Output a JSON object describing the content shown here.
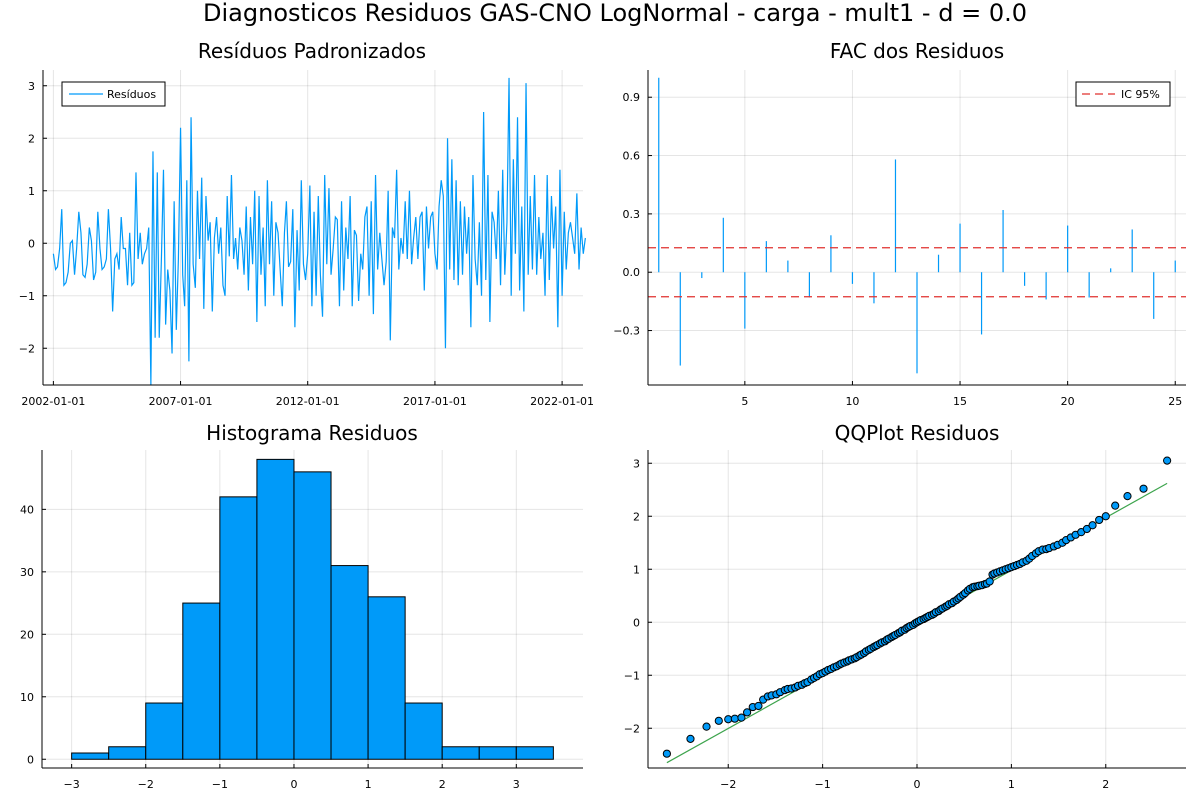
{
  "figure_title": "Diagnosticos Residuos  GAS-CNO LogNormal - carga - mult1 - d = 0.0",
  "colors": {
    "series": "#009af9",
    "ci": "#e26f46",
    "ci_line": "#e0302f",
    "qq_line": "#3da44d",
    "bar_edge": "#000000"
  },
  "chart_data": [
    {
      "type": "line",
      "title": "Resíduos Padronizados",
      "xlabel": "",
      "ylabel": "",
      "x_ticks": [
        "2002-01-01",
        "2007-01-01",
        "2012-01-01",
        "2017-01-01",
        "2022-01-01"
      ],
      "x_start": "2002-01-01",
      "x_end": "2022-06-01",
      "frequency": "monthly",
      "y_ticks": [
        -2,
        -1,
        0,
        1,
        2,
        3
      ],
      "ylim": [
        -2.7,
        3.3
      ],
      "grid": true,
      "legend": "top-left",
      "series": [
        {
          "name": "Resíduos",
          "values": [
            -0.2,
            -0.5,
            -0.45,
            -0.1,
            0.65,
            -0.8,
            -0.75,
            -0.55,
            0.0,
            0.05,
            -0.6,
            -0.1,
            0.6,
            0.2,
            -0.6,
            -0.65,
            -0.4,
            0.3,
            0.05,
            -0.7,
            -0.55,
            0.6,
            -0.1,
            -0.5,
            -0.45,
            -0.3,
            0.65,
            -0.1,
            -1.3,
            -0.3,
            -0.2,
            -0.5,
            0.5,
            -0.1,
            -0.1,
            -0.8,
            0.2,
            -0.8,
            -0.75,
            1.35,
            -0.3,
            0.2,
            -0.4,
            -0.2,
            -0.1,
            0.3,
            -2.7,
            1.75,
            -1.8,
            1.35,
            -1.8,
            -0.3,
            1.4,
            -1.55,
            -0.5,
            -0.9,
            -2.1,
            0.8,
            -1.65,
            -0.3,
            2.2,
            -0.6,
            -1.2,
            1.2,
            -2.25,
            2.4,
            -0.4,
            -0.85,
            1.0,
            -0.3,
            1.25,
            -1.25,
            0.9,
            0.05,
            0.4,
            -1.3,
            0.1,
            0.5,
            -0.2,
            0.3,
            -0.8,
            -1.0,
            0.9,
            -0.25,
            1.3,
            -0.3,
            0.1,
            -0.5,
            0.3,
            0.05,
            -0.6,
            0.7,
            -0.9,
            0.5,
            -0.4,
            1.0,
            -1.5,
            0.9,
            -0.6,
            0.3,
            -1.2,
            1.2,
            -0.4,
            0.8,
            -1.0,
            0.4,
            0.2,
            -0.5,
            -1.2,
            0.2,
            0.8,
            -0.45,
            -0.35,
            0.65,
            -1.6,
            0.25,
            -0.9,
            1.2,
            -0.4,
            -0.7,
            -0.2,
            1.1,
            -1.2,
            0.6,
            -1.0,
            0.9,
            -0.6,
            -1.4,
            1.3,
            -0.4,
            1.05,
            -0.6,
            -0.1,
            0.5,
            0.45,
            -1.2,
            0.8,
            -0.9,
            0.3,
            -0.3,
            0.9,
            -1.2,
            0.25,
            0.15,
            -1.1,
            -0.2,
            -0.5,
            0.5,
            0.7,
            -1.0,
            0.8,
            -1.35,
            1.3,
            -0.5,
            0.2,
            -0.3,
            -0.8,
            -0.35,
            1.0,
            -1.85,
            0.3,
            0.1,
            1.4,
            -0.5,
            0.1,
            -0.2,
            0.8,
            -0.3,
            1.0,
            -0.4,
            0.1,
            0.5,
            -0.3,
            0.5,
            0.6,
            -0.9,
            0.7,
            -0.1,
            0.5,
            0.6,
            -0.2,
            -0.5,
            0.7,
            1.2,
            0.9,
            -2.0,
            2.0,
            -0.5,
            1.6,
            -0.7,
            1.2,
            -0.8,
            0.8,
            -0.6,
            0.7,
            -0.2,
            0.5,
            -1.6,
            1.3,
            -0.3,
            -0.8,
            0.4,
            -1.0,
            2.5,
            -0.7,
            1.3,
            -1.5,
            0.6,
            0.4,
            -0.3,
            1.0,
            -0.8,
            1.4,
            -0.6,
            0.4,
            3.15,
            -1.0,
            1.6,
            -0.2,
            2.4,
            -0.9,
            0.7,
            -1.3,
            3.05,
            -0.6,
            0.9,
            -0.5,
            1.3,
            -0.6,
            0.5,
            -0.3,
            0.2,
            -1.0,
            1.3,
            -0.7,
            0.9,
            -0.1,
            0.7,
            -1.6,
            1.4,
            -1.0,
            0.6,
            -0.5,
            0.2,
            0.4,
            0.1,
            -0.2,
            0.95,
            -0.5,
            0.3,
            -0.2,
            0.1
          ]
        }
      ]
    },
    {
      "type": "bar",
      "title": "FAC dos Residuos",
      "xlabel": "",
      "ylabel": "",
      "x": [
        1,
        2,
        3,
        4,
        5,
        6,
        7,
        8,
        9,
        10,
        11,
        12,
        13,
        14,
        15,
        16,
        17,
        18,
        19,
        20,
        21,
        22,
        23,
        24,
        25
      ],
      "values": [
        1.0,
        -0.48,
        -0.03,
        0.28,
        -0.29,
        0.16,
        0.06,
        -0.13,
        0.19,
        -0.06,
        -0.16,
        0.58,
        -0.52,
        0.09,
        0.25,
        -0.32,
        0.32,
        -0.07,
        -0.14,
        0.24,
        -0.13,
        0.02,
        0.22,
        -0.24,
        0.06
      ],
      "x_ticks": [
        5,
        10,
        15,
        20,
        25
      ],
      "y_ticks": [
        -0.3,
        0.0,
        0.3,
        0.6,
        0.9
      ],
      "xlim": [
        0.5,
        25.5
      ],
      "ylim": [
        -0.58,
        1.04
      ],
      "ci": 0.126,
      "grid": true,
      "legend": "top-right",
      "legend_label": "IC 95%"
    },
    {
      "type": "bar",
      "title": "Histograma Residuos",
      "xlabel": "",
      "ylabel": "",
      "bin_edges": [
        -3.0,
        -2.5,
        -2.0,
        -1.5,
        -1.0,
        -0.5,
        0.0,
        0.5,
        1.0,
        1.5,
        2.0,
        2.5,
        3.0,
        3.5
      ],
      "values": [
        1,
        2,
        9,
        25,
        42,
        48,
        46,
        31,
        26,
        9,
        2,
        2,
        2
      ],
      "x_ticks": [
        -3,
        -2,
        -1,
        0,
        1,
        2,
        3
      ],
      "y_ticks": [
        0,
        10,
        20,
        30,
        40
      ],
      "xlim": [
        -3.4,
        3.9
      ],
      "ylim": [
        -1.4,
        49.5
      ],
      "grid": true
    },
    {
      "type": "scatter",
      "title": "QQPlot Residuos",
      "xlabel": "",
      "ylabel": "",
      "x_ticks": [
        -2,
        -1,
        0,
        1,
        2
      ],
      "y_ticks": [
        -2,
        -1,
        0,
        1,
        2,
        3
      ],
      "xlim": [
        -2.85,
        2.85
      ],
      "ylim": [
        -2.75,
        3.25
      ],
      "grid": true,
      "reference_line": {
        "x": [
          -2.65,
          2.65
        ],
        "y": [
          -2.65,
          2.62
        ]
      },
      "points": [
        [
          -2.65,
          -2.48
        ],
        [
          -2.4,
          -2.2
        ],
        [
          -2.23,
          -1.97
        ],
        [
          -2.1,
          -1.86
        ],
        [
          -2.0,
          -1.83
        ],
        [
          -1.93,
          -1.82
        ],
        [
          -1.86,
          -1.8
        ],
        [
          -1.8,
          -1.7
        ],
        [
          -1.74,
          -1.6
        ],
        [
          -1.68,
          -1.58
        ],
        [
          -1.63,
          -1.46
        ],
        [
          -1.58,
          -1.4
        ],
        [
          -1.54,
          -1.38
        ],
        [
          -1.49,
          -1.36
        ],
        [
          -1.45,
          -1.32
        ],
        [
          -1.4,
          -1.28
        ],
        [
          -1.37,
          -1.26
        ],
        [
          -1.33,
          -1.25
        ],
        [
          -1.29,
          -1.23
        ],
        [
          -1.26,
          -1.2
        ],
        [
          -1.22,
          -1.18
        ],
        [
          -1.19,
          -1.15
        ],
        [
          -1.16,
          -1.13
        ],
        [
          -1.12,
          -1.08
        ],
        [
          -1.09,
          -1.05
        ],
        [
          -1.06,
          -1.02
        ],
        [
          -1.03,
          -0.98
        ],
        [
          -1.0,
          -0.96
        ],
        [
          -0.97,
          -0.93
        ],
        [
          -0.94,
          -0.9
        ],
        [
          -0.91,
          -0.88
        ],
        [
          -0.88,
          -0.85
        ],
        [
          -0.85,
          -0.83
        ],
        [
          -0.82,
          -0.8
        ],
        [
          -0.8,
          -0.78
        ],
        [
          -0.77,
          -0.76
        ],
        [
          -0.74,
          -0.74
        ],
        [
          -0.72,
          -0.72
        ],
        [
          -0.69,
          -0.7
        ],
        [
          -0.66,
          -0.68
        ],
        [
          -0.64,
          -0.66
        ],
        [
          -0.61,
          -0.63
        ],
        [
          -0.59,
          -0.61
        ],
        [
          -0.56,
          -0.58
        ],
        [
          -0.54,
          -0.55
        ],
        [
          -0.51,
          -0.52
        ],
        [
          -0.49,
          -0.5
        ],
        [
          -0.46,
          -0.47
        ],
        [
          -0.44,
          -0.45
        ],
        [
          -0.42,
          -0.43
        ],
        [
          -0.39,
          -0.4
        ],
        [
          -0.37,
          -0.38
        ],
        [
          -0.34,
          -0.36
        ],
        [
          -0.32,
          -0.33
        ],
        [
          -0.3,
          -0.31
        ],
        [
          -0.27,
          -0.28
        ],
        [
          -0.25,
          -0.26
        ],
        [
          -0.23,
          -0.24
        ],
        [
          -0.2,
          -0.21
        ],
        [
          -0.18,
          -0.19
        ],
        [
          -0.16,
          -0.16
        ],
        [
          -0.13,
          -0.14
        ],
        [
          -0.11,
          -0.11
        ],
        [
          -0.09,
          -0.09
        ],
        [
          -0.07,
          -0.07
        ],
        [
          -0.04,
          -0.05
        ],
        [
          -0.02,
          -0.02
        ],
        [
          0.0,
          0.0
        ],
        [
          0.02,
          0.02
        ],
        [
          0.04,
          0.04
        ],
        [
          0.07,
          0.06
        ],
        [
          0.09,
          0.08
        ],
        [
          0.11,
          0.1
        ],
        [
          0.13,
          0.12
        ],
        [
          0.16,
          0.14
        ],
        [
          0.18,
          0.16
        ],
        [
          0.2,
          0.19
        ],
        [
          0.23,
          0.21
        ],
        [
          0.25,
          0.24
        ],
        [
          0.27,
          0.26
        ],
        [
          0.3,
          0.29
        ],
        [
          0.32,
          0.31
        ],
        [
          0.34,
          0.34
        ],
        [
          0.37,
          0.36
        ],
        [
          0.39,
          0.39
        ],
        [
          0.42,
          0.42
        ],
        [
          0.44,
          0.45
        ],
        [
          0.46,
          0.48
        ],
        [
          0.49,
          0.52
        ],
        [
          0.51,
          0.55
        ],
        [
          0.54,
          0.6
        ],
        [
          0.56,
          0.63
        ],
        [
          0.59,
          0.66
        ],
        [
          0.61,
          0.67
        ],
        [
          0.64,
          0.68
        ],
        [
          0.66,
          0.69
        ],
        [
          0.69,
          0.7
        ],
        [
          0.72,
          0.72
        ],
        [
          0.74,
          0.73
        ],
        [
          0.77,
          0.77
        ],
        [
          0.8,
          0.9
        ],
        [
          0.82,
          0.92
        ],
        [
          0.85,
          0.94
        ],
        [
          0.88,
          0.96
        ],
        [
          0.91,
          0.98
        ],
        [
          0.94,
          1.0
        ],
        [
          0.97,
          1.02
        ],
        [
          1.0,
          1.04
        ],
        [
          1.03,
          1.06
        ],
        [
          1.06,
          1.08
        ],
        [
          1.09,
          1.1
        ],
        [
          1.12,
          1.13
        ],
        [
          1.16,
          1.16
        ],
        [
          1.19,
          1.2
        ],
        [
          1.22,
          1.25
        ],
        [
          1.26,
          1.3
        ],
        [
          1.29,
          1.34
        ],
        [
          1.33,
          1.37
        ],
        [
          1.37,
          1.38
        ],
        [
          1.4,
          1.4
        ],
        [
          1.45,
          1.43
        ],
        [
          1.49,
          1.46
        ],
        [
          1.54,
          1.5
        ],
        [
          1.58,
          1.55
        ],
        [
          1.63,
          1.6
        ],
        [
          1.68,
          1.65
        ],
        [
          1.74,
          1.7
        ],
        [
          1.8,
          1.76
        ],
        [
          1.86,
          1.83
        ],
        [
          1.93,
          1.93
        ],
        [
          2.0,
          2.0
        ],
        [
          2.1,
          2.2
        ],
        [
          2.23,
          2.38
        ],
        [
          2.4,
          2.52
        ],
        [
          2.65,
          3.05
        ]
      ]
    }
  ]
}
